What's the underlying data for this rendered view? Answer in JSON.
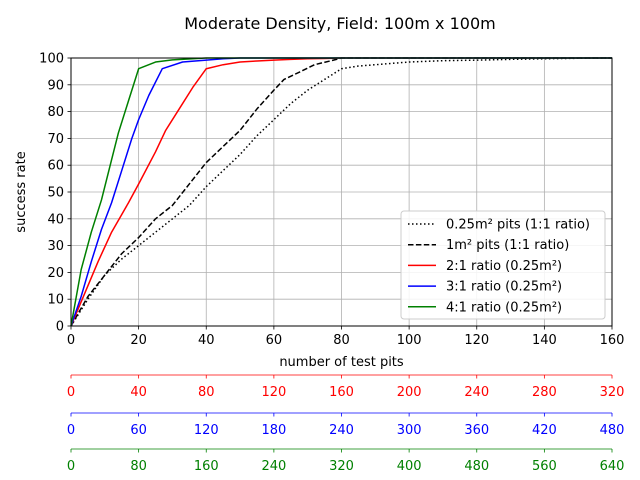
{
  "chart_data": {
    "type": "line",
    "title": "Moderate Density, Field: 100m x 100m",
    "xlabel": "number of test pits",
    "ylabel": "success rate",
    "xlim": [
      0,
      160
    ],
    "ylim": [
      0,
      100
    ],
    "x_ticks": [
      0,
      20,
      40,
      60,
      80,
      100,
      120,
      140,
      160
    ],
    "y_ticks": [
      0,
      10,
      20,
      30,
      40,
      50,
      60,
      70,
      80,
      90,
      100
    ],
    "grid": true,
    "legend_position": "lower-right",
    "series": [
      {
        "name": "0.25m² pits (1:1 ratio)",
        "color": "#000000",
        "dash": "dotted",
        "x": [
          0,
          5,
          10,
          15,
          20,
          25,
          30,
          35,
          40,
          45,
          50,
          55,
          60,
          65,
          70,
          75,
          80,
          85,
          90,
          100,
          110,
          120,
          130,
          140,
          150,
          160
        ],
        "y": [
          0,
          10,
          19,
          25,
          30,
          35,
          40,
          45,
          52,
          58,
          64,
          71,
          77,
          83,
          88,
          92,
          96,
          97,
          97.5,
          98.5,
          99,
          99.2,
          99.5,
          99.7,
          99.9,
          100
        ]
      },
      {
        "name": "1m² pits (1:1 ratio)",
        "color": "#000000",
        "dash": "dashed",
        "x": [
          0,
          5,
          10,
          15,
          20,
          25,
          30,
          35,
          40,
          45,
          50,
          55,
          60,
          63,
          68,
          72,
          77,
          80,
          90,
          100,
          160
        ],
        "y": [
          0,
          11,
          19,
          27,
          33,
          40,
          45,
          53,
          61,
          67,
          73,
          81,
          88,
          92,
          95,
          97.5,
          99,
          100,
          100,
          100,
          100
        ]
      },
      {
        "name": "2:1 ratio (0.25m²)",
        "color": "#ff0000",
        "dash": "solid",
        "x": [
          0,
          4,
          8,
          12,
          17,
          20,
          25,
          28,
          32,
          36,
          40,
          45,
          50,
          55,
          60,
          65,
          70,
          75,
          80,
          90,
          100,
          160
        ],
        "y": [
          0,
          12,
          24,
          35,
          46,
          53,
          65,
          73,
          81,
          89,
          96,
          97.5,
          98.5,
          98.9,
          99.2,
          99.5,
          99.7,
          99.8,
          100,
          100,
          100,
          100
        ]
      },
      {
        "name": "3:1 ratio (0.25m²)",
        "color": "#0000ff",
        "dash": "solid",
        "x": [
          0,
          3,
          6,
          9,
          12,
          15,
          18,
          20,
          23,
          27,
          33,
          40,
          45,
          50,
          60,
          160
        ],
        "y": [
          0,
          11,
          24,
          36,
          46,
          58,
          70,
          77,
          86,
          96,
          98.5,
          99.2,
          99.7,
          100,
          100,
          100
        ]
      },
      {
        "name": "4:1 ratio (0.25m²)",
        "color": "#008000",
        "dash": "solid",
        "x": [
          0,
          3,
          6,
          9,
          12,
          14,
          17,
          20,
          25,
          30,
          40,
          160
        ],
        "y": [
          0,
          21,
          35,
          47,
          62,
          72,
          84,
          96,
          98.5,
          99.3,
          100,
          100
        ]
      }
    ],
    "secondary_axes": [
      {
        "color": "#ff0000",
        "ticks": [
          "0",
          "40",
          "80",
          "120",
          "160",
          "200",
          "240",
          "280",
          "320"
        ]
      },
      {
        "color": "#0000ff",
        "ticks": [
          "0",
          "60",
          "120",
          "180",
          "240",
          "300",
          "360",
          "420",
          "480"
        ]
      },
      {
        "color": "#008000",
        "ticks": [
          "0",
          "80",
          "160",
          "240",
          "320",
          "400",
          "480",
          "560",
          "640"
        ]
      }
    ]
  }
}
